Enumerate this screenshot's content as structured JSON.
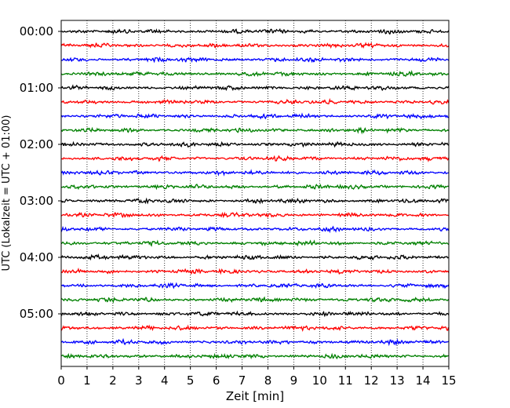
{
  "chart_data": {
    "type": "line",
    "title": "",
    "xlabel": "Zeit  [min]",
    "ylabel": "UTC (Lokalzeit = UTC + 01:00)",
    "xlim": [
      0,
      15
    ],
    "x_ticks": [
      "0",
      "1",
      "2",
      "3",
      "4",
      "5",
      "6",
      "7",
      "8",
      "9",
      "10",
      "11",
      "12",
      "13",
      "14",
      "15"
    ],
    "y_tick_labels": [
      "00:00",
      "01:00",
      "02:00",
      "03:00",
      "04:00",
      "05:00"
    ],
    "rows_per_hour": 4,
    "row_count": 24,
    "minutes_per_row": 15,
    "trace_colors": [
      "#000000",
      "#ff0000",
      "#0000ff",
      "#008000"
    ],
    "vertical_grid": "dotted, at every minute",
    "description_of_traces": "helicorder seismogram traces, one per 15-minute block, noise-like signal"
  }
}
